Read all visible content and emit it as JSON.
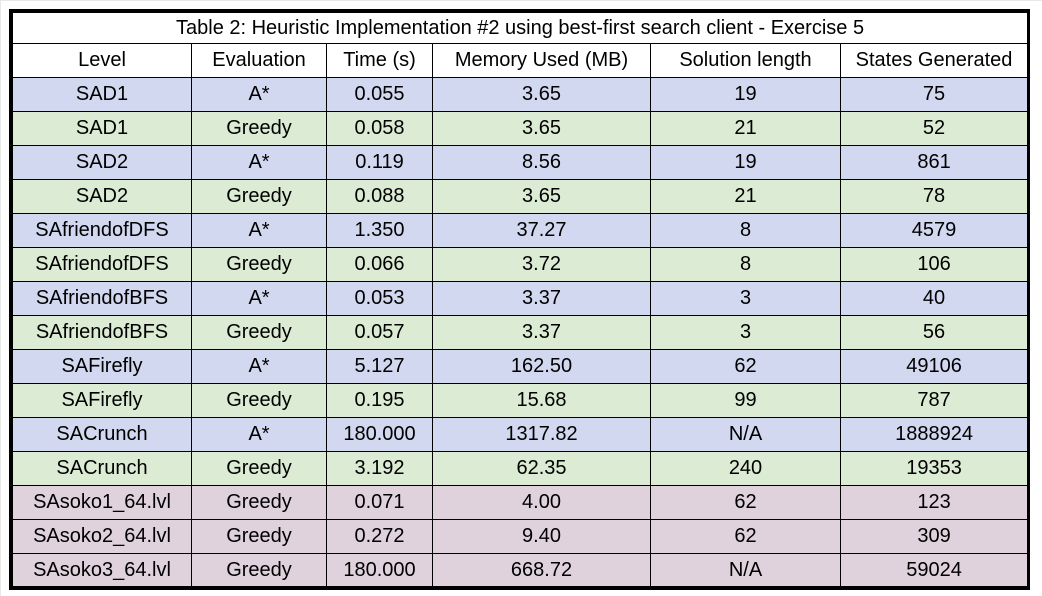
{
  "caption": "Table 2: Heuristic Implementation #2 using best-first search client - Exercise 5",
  "columns": [
    "Level",
    "Evaluation",
    "Time (s)",
    "Memory Used (MB)",
    "Solution length",
    "States Generated"
  ],
  "rows": [
    {
      "color": "blue",
      "cells": [
        "SAD1",
        "A*",
        "0.055",
        "3.65",
        "19",
        "75"
      ]
    },
    {
      "color": "green",
      "cells": [
        "SAD1",
        "Greedy",
        "0.058",
        "3.65",
        "21",
        "52"
      ]
    },
    {
      "color": "blue",
      "cells": [
        "SAD2",
        "A*",
        "0.119",
        "8.56",
        "19",
        "861"
      ]
    },
    {
      "color": "green",
      "cells": [
        "SAD2",
        "Greedy",
        "0.088",
        "3.65",
        "21",
        "78"
      ]
    },
    {
      "color": "blue",
      "cells": [
        "SAfriendofDFS",
        "A*",
        "1.350",
        "37.27",
        "8",
        "4579"
      ]
    },
    {
      "color": "green",
      "cells": [
        "SAfriendofDFS",
        "Greedy",
        "0.066",
        "3.72",
        "8",
        "106"
      ]
    },
    {
      "color": "blue",
      "cells": [
        "SAfriendofBFS",
        "A*",
        "0.053",
        "3.37",
        "3",
        "40"
      ]
    },
    {
      "color": "green",
      "cells": [
        "SAfriendofBFS",
        "Greedy",
        "0.057",
        "3.37",
        "3",
        "56"
      ]
    },
    {
      "color": "blue",
      "cells": [
        "SAFirefly",
        "A*",
        "5.127",
        "162.50",
        "62",
        "49106"
      ]
    },
    {
      "color": "green",
      "cells": [
        "SAFirefly",
        "Greedy",
        "0.195",
        "15.68",
        "99",
        "787"
      ]
    },
    {
      "color": "blue",
      "cells": [
        "SACrunch",
        "A*",
        "180.000",
        "1317.82",
        "N/A",
        "1888924"
      ]
    },
    {
      "color": "green",
      "cells": [
        "SACrunch",
        "Greedy",
        "3.192",
        "62.35",
        "240",
        "19353"
      ]
    },
    {
      "color": "purple",
      "cells": [
        "SAsoko1_64.lvl",
        "Greedy",
        "0.071",
        "4.00",
        "62",
        "123"
      ]
    },
    {
      "color": "purple",
      "cells": [
        "SAsoko2_64.lvl",
        "Greedy",
        "0.272",
        "9.40",
        "62",
        "309"
      ]
    },
    {
      "color": "purple",
      "cells": [
        "SAsoko3_64.lvl",
        "Greedy",
        "180.000",
        "668.72",
        "N/A",
        "59024"
      ]
    }
  ],
  "colors": {
    "blue": "#d1d8ef",
    "green": "#dcebd4",
    "purple": "#dfd2dc"
  }
}
